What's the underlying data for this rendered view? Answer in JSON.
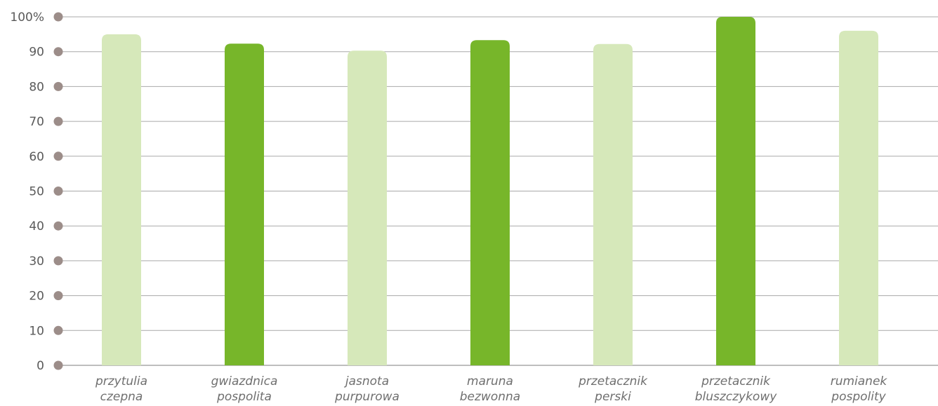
{
  "chart_data": {
    "type": "bar",
    "categories": [
      [
        "przytulia",
        "czepna"
      ],
      [
        "gwiazdnica",
        "pospolita"
      ],
      [
        "jasnota",
        "purpurowa"
      ],
      [
        "maruna",
        "bezwonna"
      ],
      [
        "przetacznik",
        "perski"
      ],
      [
        "przetacznik",
        "bluszczykowy"
      ],
      [
        "rumianek",
        "pospolity"
      ]
    ],
    "values": [
      95,
      92.3,
      90.3,
      93.3,
      92.2,
      100,
      96
    ],
    "ylim": [
      0,
      100
    ],
    "yticks": [
      0,
      10,
      20,
      30,
      40,
      50,
      60,
      70,
      80,
      90,
      100
    ],
    "ytick_labels": [
      "0",
      "10",
      "20",
      "30",
      "40",
      "50",
      "60",
      "70",
      "80",
      "90",
      "100%"
    ],
    "grid": true,
    "bar_colors": [
      "#d6e8ba",
      "#77b62a",
      "#d6e8ba",
      "#77b62a",
      "#d6e8ba",
      "#77b62a",
      "#d6e8ba"
    ],
    "colors": {
      "grid": "#a9a9a9",
      "tick_marker": "#9c8d89",
      "tick_text": "#5a5a5a",
      "category_text": "#6f6f6f"
    }
  }
}
